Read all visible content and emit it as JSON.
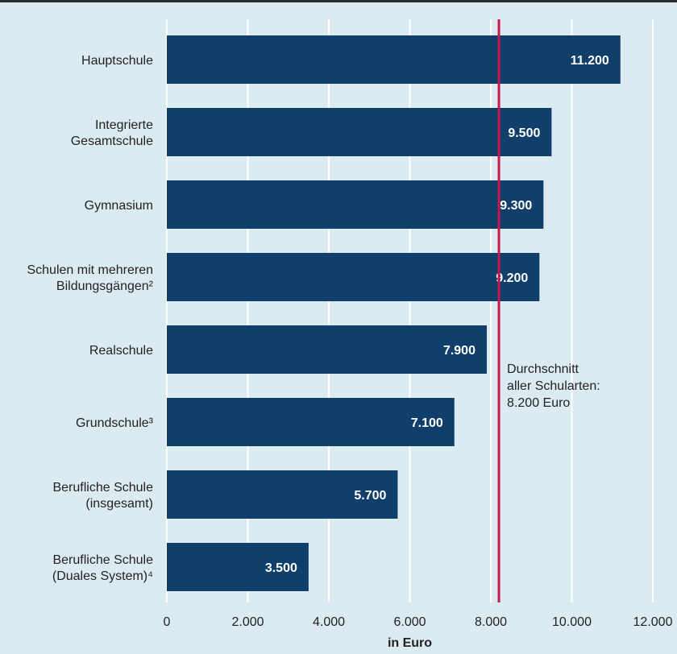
{
  "colors": {
    "background": "#dcebf2",
    "bar": "#0f3f6a",
    "average_line": "#c8174a",
    "grid": "#ffffff"
  },
  "chart_data": {
    "type": "bar",
    "orientation": "horizontal",
    "categories": [
      [
        "Hauptschule"
      ],
      [
        "Integrierte",
        "Gesamtschule"
      ],
      [
        "Gymnasium"
      ],
      [
        "Schulen mit mehreren",
        "Bildungsgängen²"
      ],
      [
        "Realschule"
      ],
      [
        "Grundschule³"
      ],
      [
        "Berufliche Schule",
        "(insgesamt)"
      ],
      [
        "Berufliche Schule",
        "(Duales System)⁴"
      ]
    ],
    "values": [
      11200,
      9500,
      9300,
      9200,
      7900,
      7100,
      5700,
      3500
    ],
    "value_labels": [
      "11.200",
      "9.500",
      "9.300",
      "9.200",
      "7.900",
      "7.100",
      "5.700",
      "3.500"
    ],
    "xlim": [
      0,
      12000
    ],
    "xticks": [
      0,
      2000,
      4000,
      6000,
      8000,
      10000,
      12000
    ],
    "xtick_labels": [
      "0",
      "2.000",
      "4.000",
      "6.000",
      "8.000",
      "10.000",
      "12.000"
    ],
    "xlabel": "in Euro",
    "grid": true,
    "reference_line": {
      "value": 8200,
      "label_lines": [
        "Durchschnitt",
        "aller Schularten:",
        "8.200 Euro"
      ]
    }
  }
}
